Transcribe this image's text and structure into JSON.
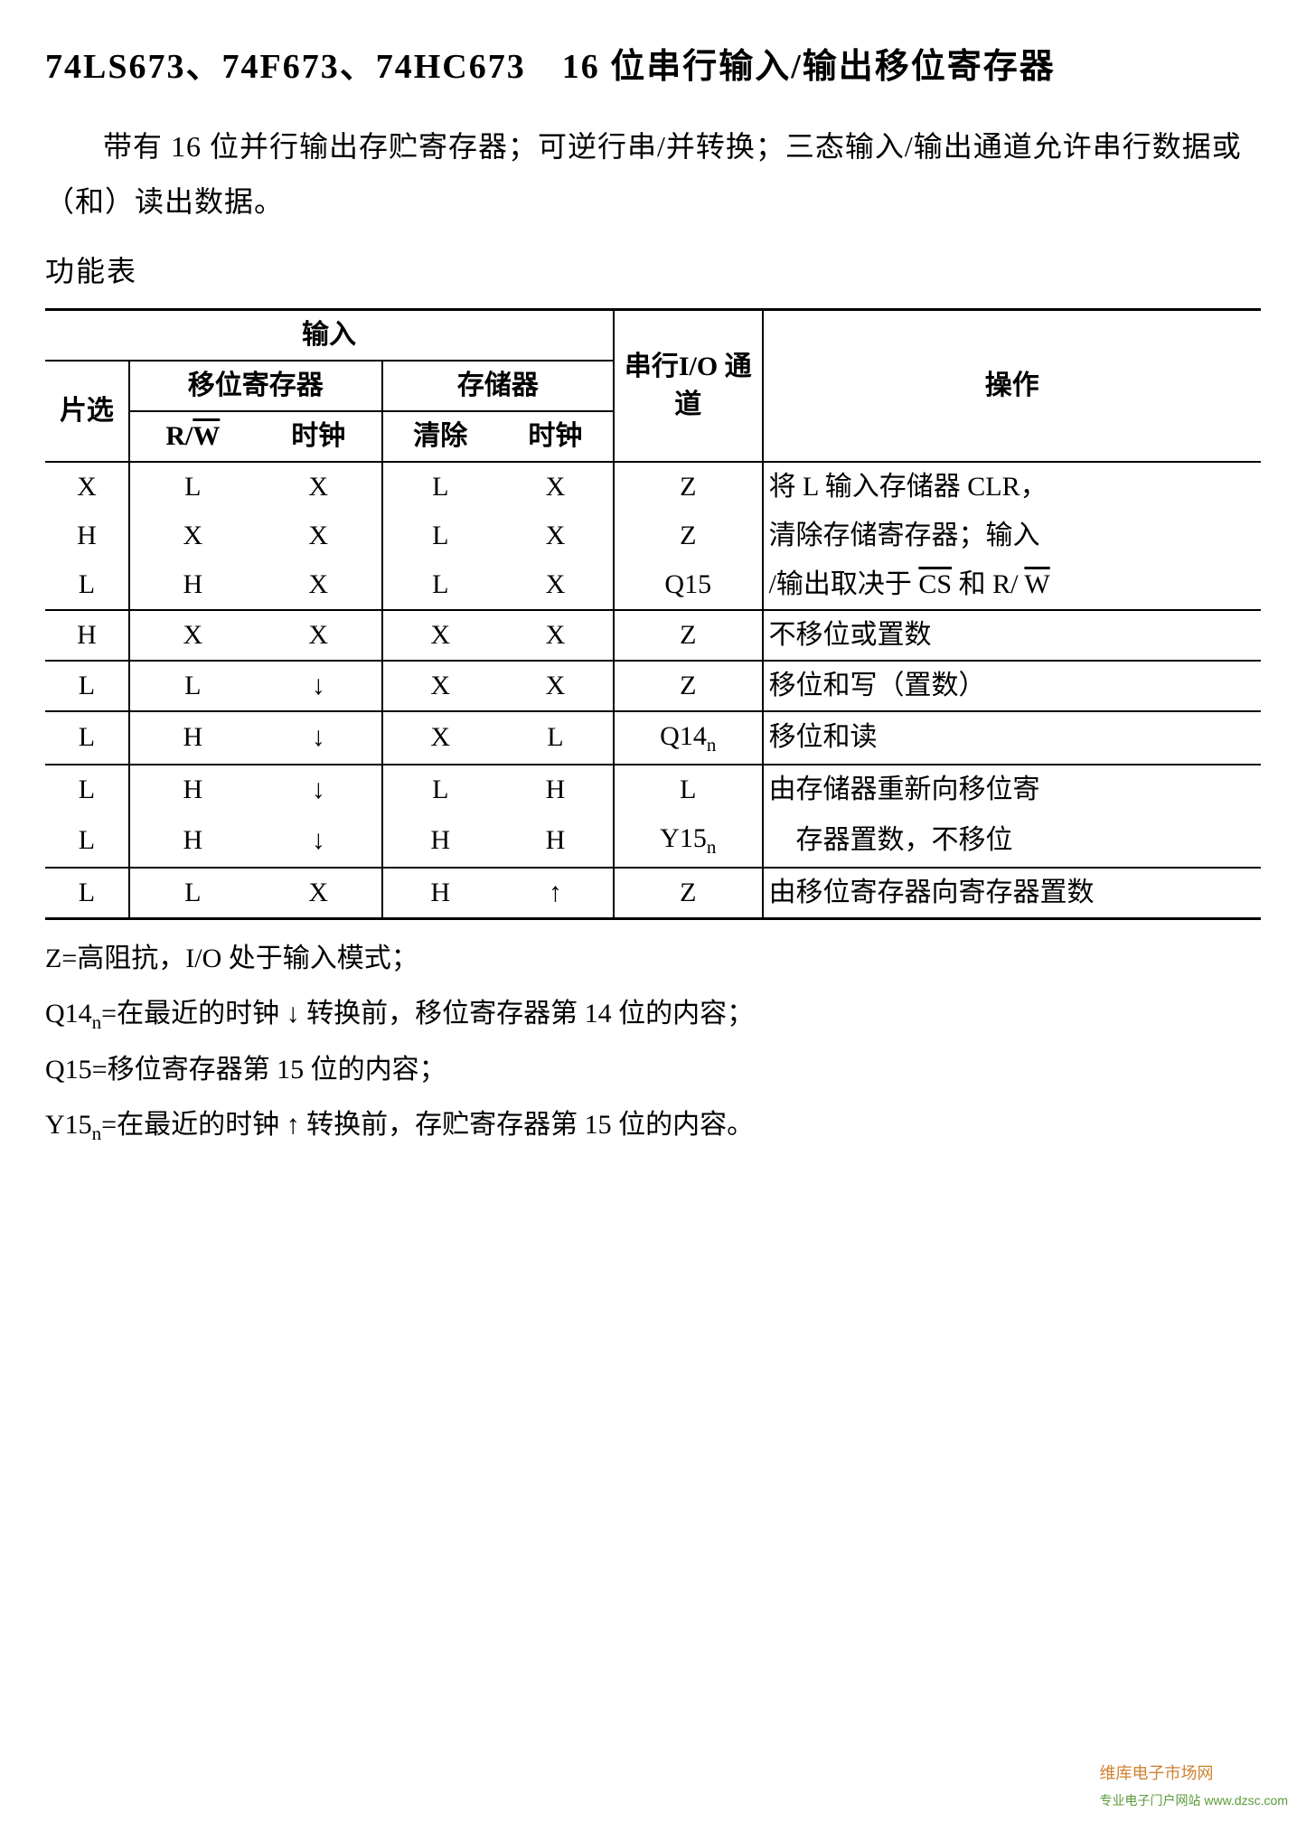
{
  "title": "74LS673、74F673、74HC673　16 位串行输入/输出移位寄存器",
  "description": "带有 16 位并行输出存贮寄存器；可逆行串/并转换；三态输入/输出通道允许串行数据或（和）读出数据。",
  "subhead": "功能表",
  "headers": {
    "input": "输入",
    "chip_select": "片选",
    "shift_reg": "移位寄存器",
    "storage": "存储器",
    "rw": "R/",
    "w_over": "W",
    "clock": "时钟",
    "clear": "清除",
    "serial_io": "串行I/O 通道",
    "operation": "操作"
  },
  "rows": [
    {
      "cs": "X",
      "rw": "L",
      "srclk": "X",
      "clr": "L",
      "stclk": "X",
      "io": "Z",
      "op": "将 L 输入存储器 CLR，",
      "sep": false
    },
    {
      "cs": "H",
      "rw": "X",
      "srclk": "X",
      "clr": "L",
      "stclk": "X",
      "io": "Z",
      "op": "清除存储寄存器；输入",
      "sep": false
    },
    {
      "cs": "L",
      "rw": "H",
      "srclk": "X",
      "clr": "L",
      "stclk": "X",
      "io": "Q15",
      "op_prefix": "/输出取决于 ",
      "op_cs": "CS",
      "op_mid": " 和 R/ ",
      "op_w": "W",
      "sep": true
    },
    {
      "cs": "H",
      "rw": "X",
      "srclk": "X",
      "clr": "X",
      "stclk": "X",
      "io": "Z",
      "op": "不移位或置数",
      "sep": true
    },
    {
      "cs": "L",
      "rw": "L",
      "srclk": "↓",
      "clr": "X",
      "stclk": "X",
      "io": "Z",
      "op": "移位和写（置数）",
      "sep": true
    },
    {
      "cs": "L",
      "rw": "H",
      "srclk": "↓",
      "clr": "X",
      "stclk": "L",
      "io": "Q14",
      "io_sub": "n",
      "op": "移位和读",
      "sep": true
    },
    {
      "cs": "L",
      "rw": "H",
      "srclk": "↓",
      "clr": "L",
      "stclk": "H",
      "io": "L",
      "op": "由存储器重新向移位寄",
      "sep": false
    },
    {
      "cs": "L",
      "rw": "H",
      "srclk": "↓",
      "clr": "H",
      "stclk": "H",
      "io": "Y15",
      "io_sub": "n",
      "op": "　存器置数，不移位",
      "sep": true
    },
    {
      "cs": "L",
      "rw": "L",
      "srclk": "X",
      "clr": "H",
      "stclk": "↑",
      "io": "Z",
      "op": "由移位寄存器向寄存器置数",
      "sep": false,
      "last": true
    }
  ],
  "notes": {
    "n1": "Z=高阻抗，I/O 处于输入模式；",
    "n2_a": "Q14",
    "n2_sub": "n",
    "n2_b": "=在最近的时钟 ↓ 转换前，移位寄存器第 14 位的内容；",
    "n3": "Q15=移位寄存器第 15 位的内容；",
    "n4_a": "Y15",
    "n4_sub": "n",
    "n4_b": "=在最近的时钟 ↑ 转换前，存贮寄存器第 15 位的内容。"
  },
  "watermark": {
    "main": "维库电子市场网",
    "sub": "专业电子门户网站 www.dzsc.com"
  }
}
